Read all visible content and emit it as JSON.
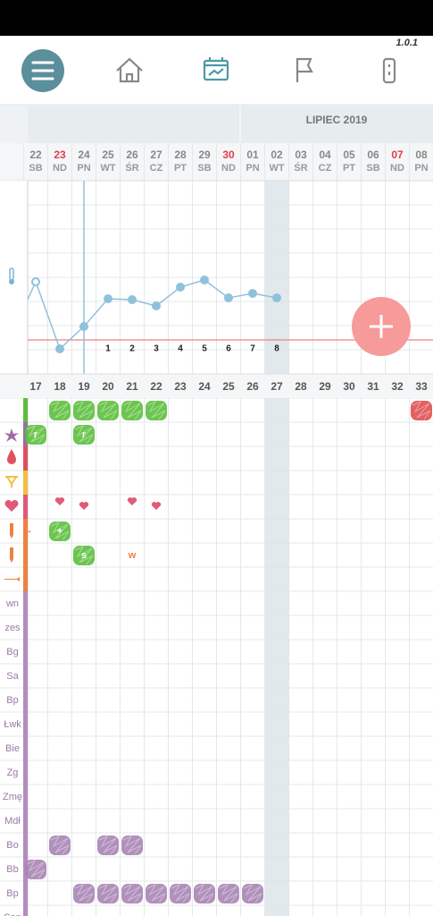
{
  "version": "1.0.1",
  "month": "LIPIEC 2019",
  "dates": [
    {
      "day": "22",
      "weekday": "SB"
    },
    {
      "day": "23",
      "weekday": "ND"
    },
    {
      "day": "24",
      "weekday": "PN"
    },
    {
      "day": "25",
      "weekday": "WT"
    },
    {
      "day": "26",
      "weekday": "ŚR"
    },
    {
      "day": "27",
      "weekday": "CZ"
    },
    {
      "day": "28",
      "weekday": "PT"
    },
    {
      "day": "29",
      "weekday": "SB"
    },
    {
      "day": "30",
      "weekday": "ND"
    },
    {
      "day": "01",
      "weekday": "PN"
    },
    {
      "day": "02",
      "weekday": "WT"
    },
    {
      "day": "03",
      "weekday": "ŚR"
    },
    {
      "day": "04",
      "weekday": "CZ"
    },
    {
      "day": "05",
      "weekday": "PT"
    },
    {
      "day": "06",
      "weekday": "SB"
    },
    {
      "day": "07",
      "weekday": "ND"
    },
    {
      "day": "08",
      "weekday": "PN"
    }
  ],
  "phase_numbers": [
    "1",
    "2",
    "3",
    "4",
    "5",
    "6",
    "7",
    "8"
  ],
  "cycle_days": [
    "17",
    "18",
    "19",
    "20",
    "21",
    "22",
    "23",
    "24",
    "25",
    "26",
    "27",
    "28",
    "29",
    "30",
    "31",
    "32",
    "33"
  ],
  "mark_texts": [
    "r",
    "r",
    "-",
    "+",
    "s",
    "w"
  ],
  "text_rows": [
    "wn",
    "zes",
    "Bg",
    "Sa",
    "Bp",
    "Łwk",
    "Bie",
    "Zg",
    "Zmę",
    "Mdł",
    "Bo",
    "Bb",
    "Bp",
    "Sen"
  ]
}
